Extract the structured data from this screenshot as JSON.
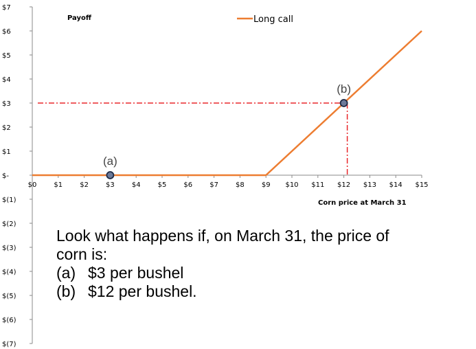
{
  "chart_data": {
    "type": "line",
    "title": "Payoff",
    "xlabel": "Corn price at March 31",
    "ylabel": "",
    "x_ticks": [
      "$0",
      "$1",
      "$2",
      "$3",
      "$4",
      "$5",
      "$6",
      "$7",
      "$8",
      "$9",
      "$10",
      "$11",
      "$12",
      "$13",
      "$14",
      "$15"
    ],
    "y_ticks": [
      "$7",
      "$6",
      "$5",
      "$4",
      "$3",
      "$2",
      "$1",
      "$-",
      "$(1)",
      "$(2)",
      "$(3)",
      "$(4)",
      "$(5)",
      "$(6)",
      "$(7)"
    ],
    "xlim": [
      0,
      15
    ],
    "ylim": [
      -7,
      7
    ],
    "legend_position": "top-center",
    "series": [
      {
        "name": "Long call",
        "color": "#ED7D31",
        "x": [
          0,
          9,
          15
        ],
        "y": [
          0,
          0,
          6
        ]
      }
    ],
    "points": [
      {
        "label": "(a)",
        "x": 3,
        "y": 0
      },
      {
        "label": "(b)",
        "x": 12,
        "y": 3
      }
    ],
    "guide_color": "#E8262A"
  },
  "note": {
    "intro_1": "Look what happens if, on March 31, the price of",
    "intro_2": "corn is:",
    "items": [
      {
        "tag": "(a)",
        "text": "$3 per bushel"
      },
      {
        "tag": "(b)",
        "text": "$12 per bushel."
      }
    ]
  }
}
